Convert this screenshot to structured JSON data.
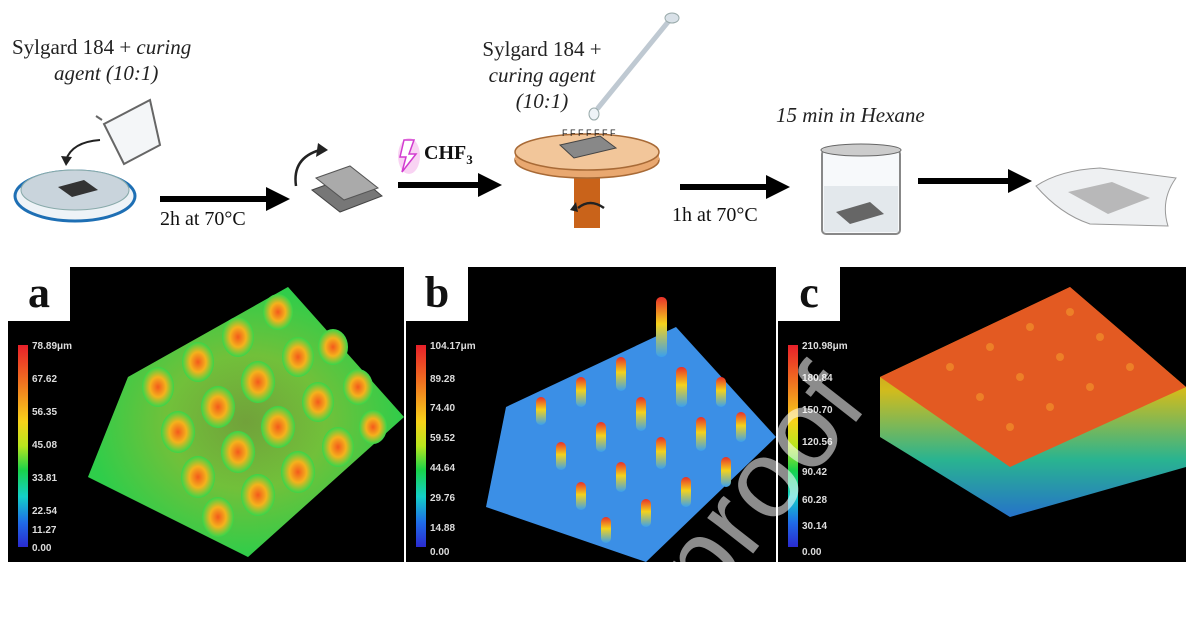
{
  "steps": {
    "s1_line1": "Sylgard 184 + ",
    "s1_line1_it": "curing",
    "s1_line2": "agent (10:1)",
    "s2_line1": "Sylgard 184 +",
    "s2_line2": "curing agent",
    "s2_line3": "(10:1)",
    "s3": "15 min in Hexane"
  },
  "conditions": {
    "c1": "2h at 70°C",
    "c2": "1h at 70°C"
  },
  "gas": {
    "base": "CHF",
    "sub": "3"
  },
  "panels": [
    {
      "label": "a",
      "unit_top": "78.89μm",
      "ticks": [
        "67.62",
        "56.35",
        "45.08",
        "33.81",
        "22.54",
        "11.27",
        "0.00"
      ]
    },
    {
      "label": "b",
      "unit_top": "104.17μm",
      "ticks": [
        "89.28",
        "74.40",
        "59.52",
        "44.64",
        "29.76",
        "14.88",
        "0.00"
      ]
    },
    {
      "label": "c",
      "unit_top": "210.98μm",
      "ticks": [
        "180.84",
        "150.70",
        "120.56",
        "90.42",
        "60.28",
        "30.14",
        "0.00"
      ]
    }
  ],
  "watermark": "proof",
  "colors": {
    "scale_top": "#e8202a",
    "scale_bottom": "#2a2ad0",
    "dish": "#1e6fb4",
    "stage": "#d98a3e"
  }
}
